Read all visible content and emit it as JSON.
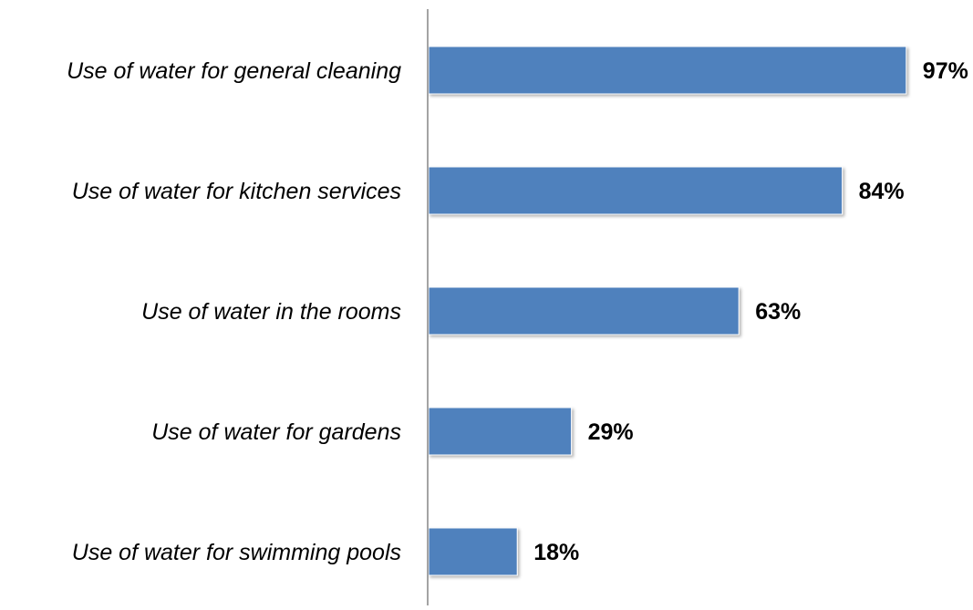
{
  "chart_data": {
    "type": "bar",
    "orientation": "horizontal",
    "categories": [
      "Use of water for general cleaning",
      "Use of water for kitchen services",
      "Use of water in the rooms",
      "Use of water for gardens",
      "Use of water for swimming pools"
    ],
    "values": [
      97,
      84,
      63,
      29,
      18
    ],
    "value_labels": [
      "97%",
      "84%",
      "63%",
      "29%",
      "18%"
    ],
    "unit": "%",
    "xlim": [
      0,
      100
    ],
    "title": "",
    "xlabel": "",
    "ylabel": "",
    "grid": false,
    "legend": "none",
    "bar_color": "#4F81BD",
    "axis_color": "#868686"
  }
}
